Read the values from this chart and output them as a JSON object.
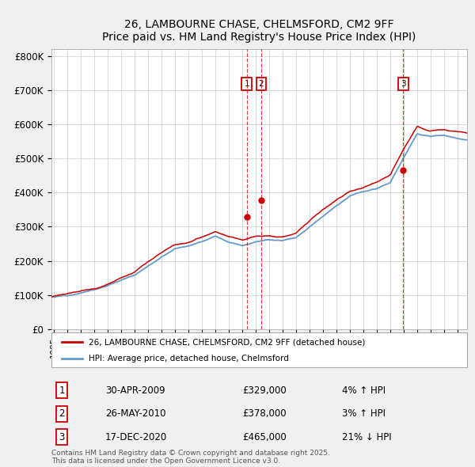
{
  "title": "26, LAMBOURNE CHASE, CHELMSFORD, CM2 9FF",
  "subtitle": "Price paid vs. HM Land Registry's House Price Index (HPI)",
  "ylabel_ticks": [
    "£0",
    "£100K",
    "£200K",
    "£300K",
    "£400K",
    "£500K",
    "£600K",
    "£700K",
    "£800K"
  ],
  "ytick_values": [
    0,
    100000,
    200000,
    300000,
    400000,
    500000,
    600000,
    700000,
    800000
  ],
  "ylim": [
    0,
    820000
  ],
  "xlim_start": 1994.8,
  "xlim_end": 2025.7,
  "legend_label_red": "26, LAMBOURNE CHASE, CHELMSFORD, CM2 9FF (detached house)",
  "legend_label_blue": "HPI: Average price, detached house, Chelmsford",
  "transactions": [
    {
      "label": "1",
      "date": 2009.33,
      "price": 329000,
      "note": "30-APR-2009",
      "pct": "4% ↑ HPI"
    },
    {
      "label": "2",
      "date": 2010.41,
      "price": 378000,
      "note": "26-MAY-2010",
      "pct": "3% ↑ HPI"
    },
    {
      "label": "3",
      "date": 2020.96,
      "price": 465000,
      "note": "17-DEC-2020",
      "pct": "21% ↓ HPI"
    }
  ],
  "footer": "Contains HM Land Registry data © Crown copyright and database right 2025.\nThis data is licensed under the Open Government Licence v3.0.",
  "bg_color": "#f0f0f0",
  "plot_bg_color": "#ffffff",
  "red_color": "#cc0000",
  "blue_color": "#6699cc",
  "grid_color": "#cccccc",
  "hpi_years": [
    1994,
    1995,
    1996,
    1997,
    1998,
    1999,
    2000,
    2001,
    2002,
    2003,
    2004,
    2005,
    2006,
    2007,
    2008,
    2009,
    2010,
    2011,
    2012,
    2013,
    2014,
    2015,
    2016,
    2017,
    2018,
    2019,
    2020,
    2021,
    2022,
    2023,
    2024,
    2025,
    2026
  ],
  "hpi_vals": [
    90000,
    95000,
    100000,
    108000,
    118000,
    132000,
    148000,
    163000,
    192000,
    220000,
    245000,
    255000,
    268000,
    283000,
    263000,
    252000,
    265000,
    270000,
    268000,
    278000,
    308000,
    338000,
    368000,
    398000,
    412000,
    422000,
    438000,
    510000,
    580000,
    570000,
    575000,
    565000,
    555000
  ]
}
